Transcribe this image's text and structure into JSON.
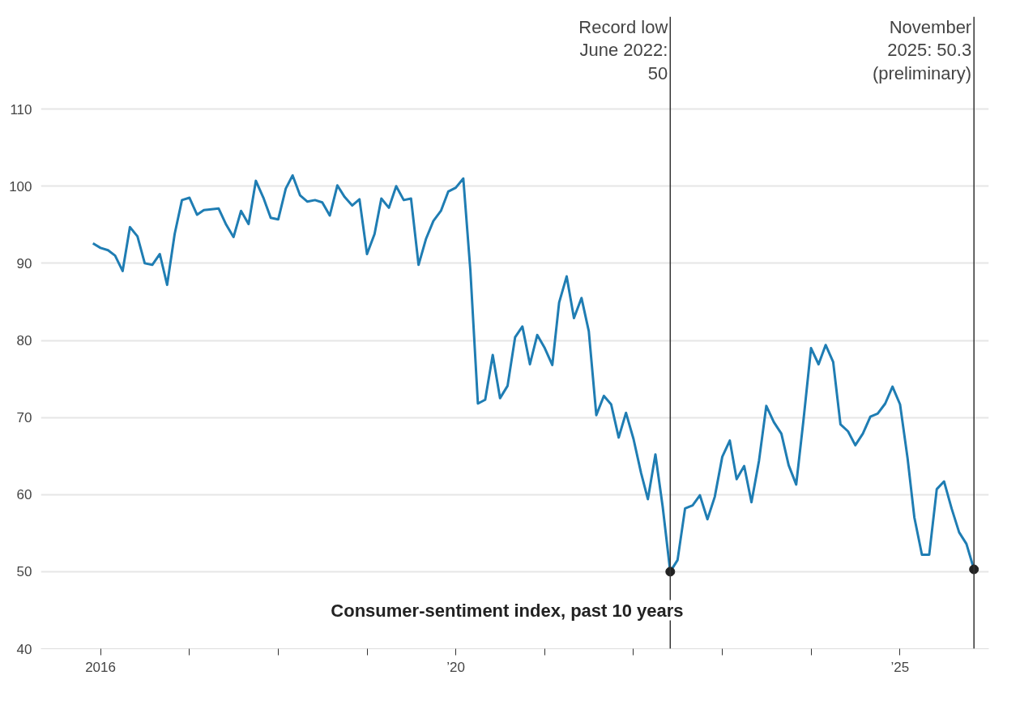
{
  "chart_data": {
    "type": "line",
    "title": "Consumer-sentiment index, past 10 years",
    "x": [
      "2015-12",
      "2016-01",
      "2016-02",
      "2016-03",
      "2016-04",
      "2016-05",
      "2016-06",
      "2016-07",
      "2016-08",
      "2016-09",
      "2016-10",
      "2016-11",
      "2016-12",
      "2017-01",
      "2017-02",
      "2017-03",
      "2017-04",
      "2017-05",
      "2017-06",
      "2017-07",
      "2017-08",
      "2017-09",
      "2017-10",
      "2017-11",
      "2017-12",
      "2018-01",
      "2018-02",
      "2018-03",
      "2018-04",
      "2018-05",
      "2018-06",
      "2018-07",
      "2018-08",
      "2018-09",
      "2018-10",
      "2018-11",
      "2018-12",
      "2019-01",
      "2019-02",
      "2019-03",
      "2019-04",
      "2019-05",
      "2019-06",
      "2019-07",
      "2019-08",
      "2019-09",
      "2019-10",
      "2019-11",
      "2019-12",
      "2020-01",
      "2020-02",
      "2020-03",
      "2020-04",
      "2020-05",
      "2020-06",
      "2020-07",
      "2020-08",
      "2020-09",
      "2020-10",
      "2020-11",
      "2020-12",
      "2021-01",
      "2021-02",
      "2021-03",
      "2021-04",
      "2021-05",
      "2021-06",
      "2021-07",
      "2021-08",
      "2021-09",
      "2021-10",
      "2021-11",
      "2021-12",
      "2022-01",
      "2022-02",
      "2022-03",
      "2022-04",
      "2022-05",
      "2022-06",
      "2022-07",
      "2022-08",
      "2022-09",
      "2022-10",
      "2022-11",
      "2022-12",
      "2023-01",
      "2023-02",
      "2023-03",
      "2023-04",
      "2023-05",
      "2023-06",
      "2023-07",
      "2023-08",
      "2023-09",
      "2023-10",
      "2023-11",
      "2023-12",
      "2024-01",
      "2024-02",
      "2024-03",
      "2024-04",
      "2024-05",
      "2024-06",
      "2024-07",
      "2024-08",
      "2024-09",
      "2024-10",
      "2024-11",
      "2024-12",
      "2025-01",
      "2025-02",
      "2025-03",
      "2025-04",
      "2025-05",
      "2025-06",
      "2025-07",
      "2025-08",
      "2025-09",
      "2025-10",
      "2025-11"
    ],
    "series": [
      {
        "color": "#1f7db3",
        "marker": "none",
        "values": [
          92.6,
          92.0,
          91.7,
          91.0,
          89.0,
          94.7,
          93.5,
          90.0,
          89.8,
          91.2,
          87.2,
          93.8,
          98.2,
          98.5,
          96.3,
          96.9,
          97.0,
          97.1,
          95.0,
          93.4,
          96.8,
          95.1,
          100.7,
          98.5,
          95.9,
          95.7,
          99.7,
          101.4,
          98.8,
          98.0,
          98.2,
          97.9,
          96.2,
          100.1,
          98.6,
          97.5,
          98.3,
          91.2,
          93.8,
          98.4,
          97.2,
          100.0,
          98.2,
          98.4,
          89.8,
          93.2,
          95.5,
          96.8,
          99.3,
          99.8,
          101.0,
          89.1,
          71.8,
          72.3,
          78.1,
          72.5,
          74.1,
          80.4,
          81.8,
          76.9,
          80.7,
          79.0,
          76.8,
          84.9,
          88.3,
          82.9,
          85.5,
          81.2,
          70.3,
          72.8,
          71.7,
          67.4,
          70.6,
          67.2,
          62.8,
          59.4,
          65.2,
          58.4,
          50.0,
          51.5,
          58.2,
          58.6,
          59.9,
          56.8,
          59.7,
          64.9,
          67.0,
          62.0,
          63.7,
          59.0,
          64.4,
          71.5,
          69.4,
          67.9,
          63.8,
          61.3,
          69.7,
          79.0,
          76.9,
          79.4,
          77.2,
          69.1,
          68.2,
          66.4,
          67.9,
          70.1,
          70.5,
          71.8,
          74.0,
          71.7,
          64.7,
          57.0,
          52.2,
          52.2,
          60.7,
          61.7,
          58.2,
          55.1,
          53.6,
          50.3
        ]
      },
      {
        "type": "scatter",
        "marker": "circle",
        "color": "#222222",
        "x": [
          "2022-06",
          "2025-11"
        ],
        "values": [
          50.0,
          50.3
        ]
      }
    ],
    "ref_lines": [
      {
        "axis": "x",
        "value": "2022-06",
        "label": "Record low June 2022: 50",
        "color": "#333333"
      },
      {
        "axis": "x",
        "value": "2025-11",
        "label": "November 2025: 50.3 (preliminary)",
        "color": "#333333"
      }
    ],
    "xlim": [
      "2015-05",
      "2026-01"
    ],
    "xticks": [
      {
        "value": "2016",
        "label": "2016"
      },
      {
        "value": "2017",
        "label": null
      },
      {
        "value": "2018",
        "label": null
      },
      {
        "value": "2019",
        "label": null
      },
      {
        "value": "2020",
        "label": "’20"
      },
      {
        "value": "2021",
        "label": null
      },
      {
        "value": "2022",
        "label": null
      },
      {
        "value": "2023",
        "label": null
      },
      {
        "value": "2024",
        "label": null
      },
      {
        "value": "2025",
        "label": "’25"
      }
    ],
    "ylim": [
      40,
      122
    ],
    "yticks": [
      40,
      50,
      60,
      70,
      80,
      90,
      100,
      110
    ],
    "grid": "y",
    "line_style": "solid"
  }
}
